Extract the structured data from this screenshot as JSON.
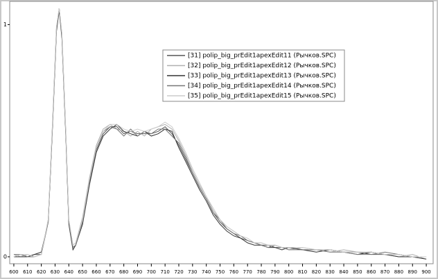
{
  "chart_data": {
    "type": "line",
    "x": [
      600,
      605,
      610,
      615,
      620,
      625,
      628,
      631,
      633,
      635,
      638,
      640,
      643,
      645,
      650,
      655,
      660,
      665,
      670,
      675,
      680,
      685,
      690,
      695,
      700,
      705,
      710,
      715,
      720,
      725,
      730,
      735,
      740,
      745,
      750,
      755,
      760,
      765,
      770,
      775,
      780,
      785,
      790,
      795,
      800,
      810,
      820,
      830,
      840,
      850,
      860,
      870,
      880,
      890,
      900
    ],
    "series": [
      {
        "name": "[31] polip_big_prEdit1apexEdit11 (Рычков.SPC)",
        "color": "#555555",
        "values": [
          0,
          0.01,
          0,
          0.01,
          0.01,
          0.15,
          0.55,
          0.98,
          1.07,
          0.95,
          0.5,
          0.15,
          0.04,
          0.05,
          0.15,
          0.32,
          0.46,
          0.53,
          0.56,
          0.56,
          0.53,
          0.54,
          0.53,
          0.53,
          0.53,
          0.54,
          0.56,
          0.53,
          0.48,
          0.42,
          0.36,
          0.3,
          0.25,
          0.19,
          0.15,
          0.12,
          0.1,
          0.08,
          0.07,
          0.06,
          0.05,
          0.05,
          0.04,
          0.04,
          0.04,
          0.03,
          0.03,
          0.03,
          0.02,
          0.02,
          0.01,
          0.01,
          0.01,
          0,
          -0.01
        ]
      },
      {
        "name": "[32] polip_big_prEdit1apexEdit12 (Рычков.SPC)",
        "color": "#b0b0b0",
        "values": [
          0.01,
          0,
          0.01,
          0,
          0.01,
          0.16,
          0.56,
          0.99,
          1.07,
          0.96,
          0.51,
          0.16,
          0.05,
          0.06,
          0.17,
          0.34,
          0.48,
          0.55,
          0.57,
          0.55,
          0.54,
          0.52,
          0.54,
          0.52,
          0.55,
          0.56,
          0.57,
          0.55,
          0.5,
          0.44,
          0.37,
          0.31,
          0.26,
          0.2,
          0.16,
          0.13,
          0.11,
          0.09,
          0.07,
          0.06,
          0.06,
          0.05,
          0.05,
          0.04,
          0.03,
          0.04,
          0.03,
          0.02,
          0.03,
          0.02,
          0.02,
          0.01,
          0,
          0.01,
          -0.01
        ]
      },
      {
        "name": "[33] polip_big_prEdit1apexEdit13 (Рычков.SPC)",
        "color": "#333333",
        "values": [
          0,
          0,
          0,
          0.01,
          0.02,
          0.15,
          0.54,
          0.97,
          1.06,
          0.94,
          0.49,
          0.14,
          0.03,
          0.05,
          0.14,
          0.31,
          0.45,
          0.52,
          0.55,
          0.57,
          0.54,
          0.53,
          0.52,
          0.54,
          0.52,
          0.53,
          0.55,
          0.54,
          0.47,
          0.41,
          0.35,
          0.29,
          0.24,
          0.18,
          0.14,
          0.11,
          0.09,
          0.08,
          0.06,
          0.05,
          0.05,
          0.04,
          0.04,
          0.03,
          0.04,
          0.03,
          0.02,
          0.03,
          0.02,
          0.01,
          0.02,
          0.01,
          0,
          0,
          -0.01
        ]
      },
      {
        "name": "[34] polip_big_prEdit1apexEdit14 (Рычков.SPC)",
        "color": "#777777",
        "values": [
          0.01,
          0.01,
          0,
          0,
          0.01,
          0.15,
          0.55,
          0.98,
          1.07,
          0.95,
          0.5,
          0.15,
          0.04,
          0.05,
          0.15,
          0.33,
          0.47,
          0.54,
          0.56,
          0.55,
          0.52,
          0.55,
          0.52,
          0.54,
          0.53,
          0.55,
          0.55,
          0.52,
          0.49,
          0.43,
          0.36,
          0.3,
          0.25,
          0.19,
          0.16,
          0.12,
          0.1,
          0.09,
          0.07,
          0.06,
          0.05,
          0.04,
          0.05,
          0.04,
          0.03,
          0.03,
          0.03,
          0.02,
          0.02,
          0.01,
          0.01,
          0.02,
          0.01,
          0,
          0
        ]
      },
      {
        "name": "[35] polip_big_prEdit1apexEdit15 (Рычков.SPC)",
        "color": "#cccccc",
        "values": [
          0,
          0.01,
          0.01,
          0,
          0.01,
          0.16,
          0.56,
          0.99,
          1.07,
          0.96,
          0.51,
          0.16,
          0.05,
          0.06,
          0.16,
          0.33,
          0.47,
          0.54,
          0.57,
          0.57,
          0.55,
          0.54,
          0.55,
          0.54,
          0.55,
          0.56,
          0.58,
          0.56,
          0.51,
          0.45,
          0.38,
          0.32,
          0.26,
          0.21,
          0.16,
          0.13,
          0.11,
          0.09,
          0.08,
          0.06,
          0.06,
          0.05,
          0.05,
          0.04,
          0.04,
          0.04,
          0.03,
          0.03,
          0.02,
          0.02,
          0.02,
          0.01,
          0.01,
          0,
          0
        ]
      }
    ],
    "xlim": [
      597,
      905
    ],
    "xticks": [
      600,
      610,
      620,
      630,
      640,
      650,
      660,
      670,
      680,
      690,
      700,
      710,
      720,
      730,
      740,
      750,
      760,
      770,
      780,
      790,
      800,
      810,
      820,
      830,
      840,
      850,
      860,
      870,
      880,
      890,
      900
    ],
    "ylim": [
      -0.03,
      1.1
    ],
    "yticks": [
      0,
      1
    ],
    "legend": "upper right"
  }
}
